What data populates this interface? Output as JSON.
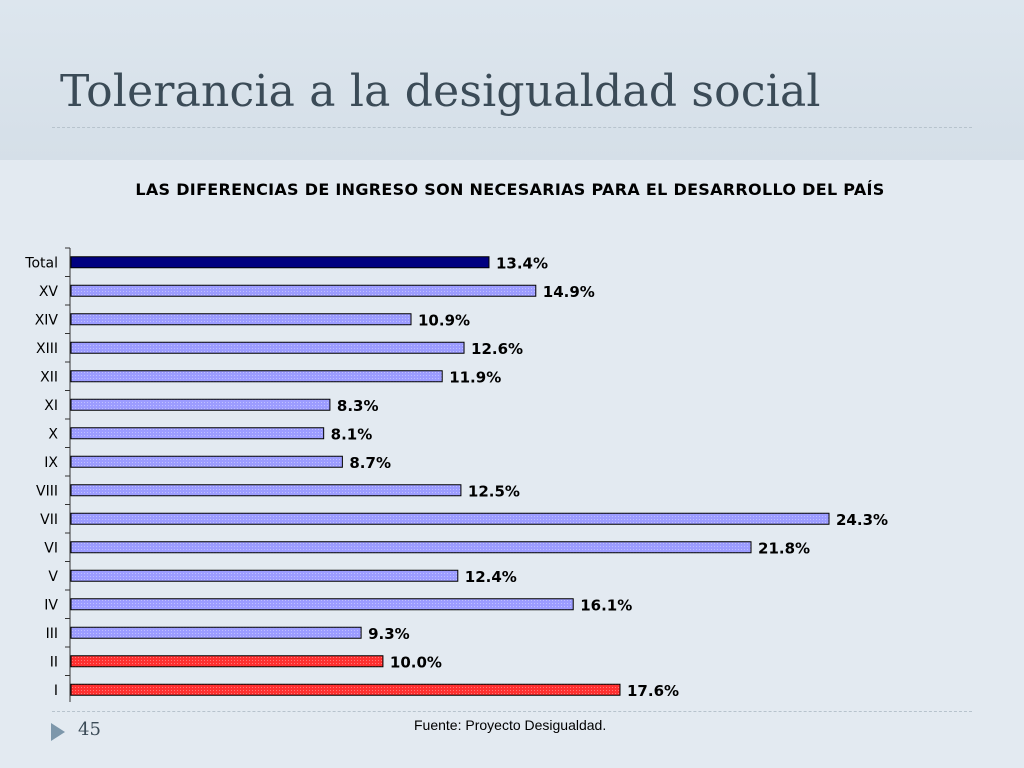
{
  "slide": {
    "title": "Tolerancia a la desigualdad social",
    "page_number": "45",
    "source": "Fuente: Proyecto Desigualdad."
  },
  "colors": {
    "total_bar": "#000080",
    "region_bar": "#9c9cff",
    "highlight_bar": "#ff3030"
  },
  "chart_data": {
    "type": "bar",
    "orientation": "horizontal",
    "title": "LAS DIFERENCIAS DE INGRESO SON NECESARIAS PARA EL DESARROLLO DEL PAÍS",
    "categories": [
      "Total",
      "XV",
      "XIV",
      "XIII",
      "XII",
      "XI",
      "X",
      "IX",
      "VIII",
      "VII",
      "VI",
      "V",
      "IV",
      "III",
      "II",
      "I"
    ],
    "values": [
      13.4,
      14.9,
      10.9,
      12.6,
      11.9,
      8.3,
      8.1,
      8.7,
      12.5,
      24.3,
      21.8,
      12.4,
      16.1,
      9.3,
      10.0,
      17.6
    ],
    "data_labels": [
      "13.4%",
      "14.9%",
      "10.9%",
      "12.6%",
      "11.9%",
      "8.3%",
      "8.1%",
      "8.7%",
      "12.5%",
      "24.3%",
      "21.8%",
      "12.4%",
      "16.1%",
      "9.3%",
      "10.0%",
      "17.6%"
    ],
    "bar_colors": [
      "#000080",
      "#9c9cff",
      "#9c9cff",
      "#9c9cff",
      "#9c9cff",
      "#9c9cff",
      "#9c9cff",
      "#9c9cff",
      "#9c9cff",
      "#9c9cff",
      "#9c9cff",
      "#9c9cff",
      "#9c9cff",
      "#9c9cff",
      "#ff3030",
      "#ff3030"
    ],
    "xlim": [
      0,
      24.3
    ],
    "xlabel": "",
    "ylabel": "",
    "grid": false,
    "legend": "none"
  }
}
